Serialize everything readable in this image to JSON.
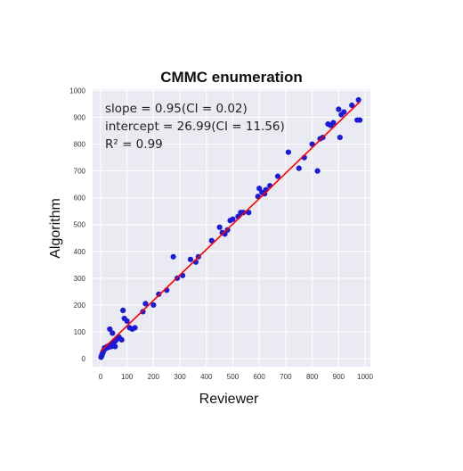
{
  "chart_data": {
    "type": "scatter",
    "title": "CMMC enumeration",
    "xlabel": "Reviewer",
    "ylabel": "Algorithm",
    "xlim": [
      -30,
      1020
    ],
    "ylim": [
      -30,
      1005
    ],
    "xticks": [
      0,
      100,
      200,
      300,
      400,
      500,
      600,
      700,
      800,
      900,
      1000
    ],
    "yticks": [
      0,
      100,
      200,
      300,
      400,
      500,
      600,
      700,
      800,
      900,
      1000
    ],
    "grid": true,
    "background_color": "#eaeaf2",
    "point_color": "#1a1adb",
    "line_color": "#ff0000",
    "annotations": [
      "slope = 0.95(CI = 0.02)",
      "intercept = 26.99(CI = 11.56)",
      "R² = 0.99"
    ],
    "fit_line": {
      "slope": 0.95,
      "intercept": 26.99
    },
    "points": [
      [
        2,
        5
      ],
      [
        4,
        10
      ],
      [
        6,
        15
      ],
      [
        8,
        20
      ],
      [
        10,
        25
      ],
      [
        12,
        30
      ],
      [
        15,
        40
      ],
      [
        20,
        38
      ],
      [
        25,
        45
      ],
      [
        30,
        42
      ],
      [
        35,
        50
      ],
      [
        40,
        45
      ],
      [
        45,
        55
      ],
      [
        50,
        60
      ],
      [
        55,
        65
      ],
      [
        35,
        110
      ],
      [
        45,
        95
      ],
      [
        55,
        45
      ],
      [
        60,
        70
      ],
      [
        70,
        80
      ],
      [
        80,
        70
      ],
      [
        85,
        180
      ],
      [
        90,
        150
      ],
      [
        100,
        140
      ],
      [
        110,
        115
      ],
      [
        120,
        110
      ],
      [
        130,
        115
      ],
      [
        160,
        175
      ],
      [
        170,
        205
      ],
      [
        200,
        200
      ],
      [
        220,
        240
      ],
      [
        250,
        255
      ],
      [
        275,
        380
      ],
      [
        290,
        300
      ],
      [
        310,
        310
      ],
      [
        340,
        370
      ],
      [
        360,
        360
      ],
      [
        370,
        380
      ],
      [
        420,
        440
      ],
      [
        450,
        490
      ],
      [
        460,
        470
      ],
      [
        470,
        465
      ],
      [
        480,
        480
      ],
      [
        490,
        515
      ],
      [
        500,
        520
      ],
      [
        520,
        530
      ],
      [
        530,
        545
      ],
      [
        540,
        545
      ],
      [
        560,
        545
      ],
      [
        595,
        605
      ],
      [
        600,
        635
      ],
      [
        610,
        620
      ],
      [
        620,
        615
      ],
      [
        625,
        630
      ],
      [
        640,
        645
      ],
      [
        670,
        680
      ],
      [
        710,
        770
      ],
      [
        750,
        710
      ],
      [
        770,
        750
      ],
      [
        800,
        800
      ],
      [
        820,
        700
      ],
      [
        830,
        820
      ],
      [
        840,
        825
      ],
      [
        860,
        875
      ],
      [
        870,
        870
      ],
      [
        880,
        880
      ],
      [
        900,
        930
      ],
      [
        905,
        825
      ],
      [
        910,
        910
      ],
      [
        920,
        920
      ],
      [
        950,
        945
      ],
      [
        970,
        890
      ],
      [
        975,
        965
      ],
      [
        980,
        890
      ]
    ]
  }
}
